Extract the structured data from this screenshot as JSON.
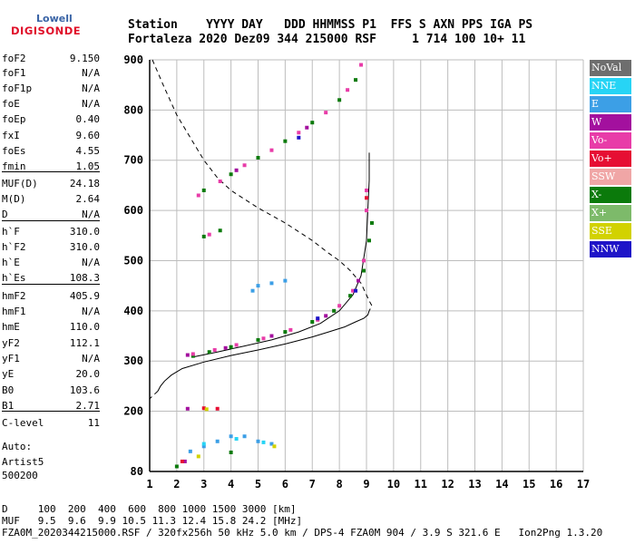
{
  "logo": {
    "top": "Lowell",
    "bottom": "DIGISONDE"
  },
  "header": {
    "line1": "Station    YYYY DAY   DDD HHMMSS P1  FFS S AXN PPS IGA PS",
    "line2": "Fortaleza 2020 Dez09 344 215000 RSF     1 714 100 10+ 11"
  },
  "params": [
    {
      "k": "foF2",
      "v": "9.150"
    },
    {
      "k": "foF1",
      "v": "N/A"
    },
    {
      "k": "foF1p",
      "v": "N/A"
    },
    {
      "k": "foE",
      "v": "N/A"
    },
    {
      "k": "foEp",
      "v": "0.40"
    },
    {
      "k": "fxI",
      "v": "9.60"
    },
    {
      "k": "foEs",
      "v": "4.55"
    },
    {
      "k": "fmin",
      "v": "1.05"
    },
    {
      "k": "MUF(D)",
      "v": "24.18"
    },
    {
      "k": "M(D)",
      "v": "2.64"
    },
    {
      "k": "D",
      "v": "N/A"
    },
    {
      "k": "h`F",
      "v": "310.0"
    },
    {
      "k": "h`F2",
      "v": "310.0"
    },
    {
      "k": "h`E",
      "v": "N/A"
    },
    {
      "k": "h`Es",
      "v": "108.3"
    },
    {
      "k": "hmF2",
      "v": "405.9"
    },
    {
      "k": "hmF1",
      "v": "N/A"
    },
    {
      "k": "hmE",
      "v": "110.0"
    },
    {
      "k": "yF2",
      "v": "112.1"
    },
    {
      "k": "yF1",
      "v": "N/A"
    },
    {
      "k": "yE",
      "v": "20.0"
    },
    {
      "k": "B0",
      "v": "103.6"
    },
    {
      "k": "B1",
      "v": "2.71"
    },
    {
      "k": "C-level",
      "v": "11"
    }
  ],
  "auto": {
    "line1": "Auto:",
    "line2": "Artist5",
    "line3": "500200"
  },
  "legend": [
    {
      "label": "NoVal",
      "color": "#6e6e6e"
    },
    {
      "label": "NNE",
      "color": "#27d4f5"
    },
    {
      "label": "E",
      "color": "#3c9fe6"
    },
    {
      "label": "W",
      "color": "#a3109e"
    },
    {
      "label": "Vo-",
      "color": "#e83ca8"
    },
    {
      "label": "Vo+",
      "color": "#e60e33"
    },
    {
      "label": "SSW",
      "color": "#f0a6a6"
    },
    {
      "label": "X-",
      "color": "#0b7a0b"
    },
    {
      "label": "X+",
      "color": "#7dba6a"
    },
    {
      "label": "SSE",
      "color": "#d2d200"
    },
    {
      "label": "NNW",
      "color": "#1e14c8"
    }
  ],
  "footer": {
    "line1": "D     100  200  400  600  800 1000 1500 3000 [km]",
    "line2": "MUF   9.5  9.6  9.9 10.5 11.3 12.4 15.8 24.2 [MHz]",
    "line3": "FZA0M_2020344215000.RSF / 320fx256h 50 kHz 5.0 km / DPS-4 FZA0M 904 / 3.9 S 321.6 E   Ion2Png 1.3.20"
  },
  "chart_data": {
    "type": "scatter",
    "xlim": [
      1,
      17
    ],
    "ylim": [
      80,
      900
    ],
    "xticks": [
      1,
      2,
      3,
      4,
      5,
      6,
      7,
      8,
      9,
      10,
      11,
      12,
      13,
      14,
      15,
      16,
      17
    ],
    "yticks": [
      80,
      200,
      300,
      400,
      500,
      600,
      700,
      800,
      900
    ],
    "grid": true,
    "legend_position": "right",
    "series": [
      {
        "name": "X-",
        "color": "#0b7a0b",
        "points": [
          [
            2.6,
            310
          ],
          [
            3.2,
            318
          ],
          [
            4.0,
            328
          ],
          [
            5.0,
            342
          ],
          [
            6.0,
            358
          ],
          [
            7.0,
            378
          ],
          [
            7.8,
            400
          ],
          [
            8.4,
            430
          ],
          [
            8.9,
            480
          ],
          [
            9.1,
            540
          ],
          [
            9.2,
            575
          ],
          [
            3.0,
            640
          ],
          [
            4.0,
            672
          ],
          [
            5.0,
            705
          ],
          [
            6.0,
            738
          ],
          [
            7.0,
            775
          ],
          [
            8.0,
            820
          ],
          [
            8.6,
            860
          ],
          [
            3.0,
            548
          ],
          [
            3.6,
            560
          ],
          [
            2.0,
            90
          ],
          [
            4.0,
            118
          ]
        ]
      },
      {
        "name": "Vo-",
        "color": "#e83ca8",
        "points": [
          [
            2.6,
            314
          ],
          [
            3.4,
            322
          ],
          [
            4.2,
            332
          ],
          [
            5.2,
            345
          ],
          [
            6.2,
            362
          ],
          [
            7.2,
            382
          ],
          [
            8.0,
            410
          ],
          [
            8.5,
            440
          ],
          [
            8.9,
            500
          ],
          [
            9.0,
            600
          ],
          [
            9.0,
            640
          ],
          [
            2.8,
            630
          ],
          [
            3.6,
            658
          ],
          [
            4.5,
            690
          ],
          [
            5.5,
            720
          ],
          [
            6.5,
            755
          ],
          [
            7.5,
            795
          ],
          [
            8.3,
            840
          ],
          [
            8.8,
            890
          ],
          [
            3.2,
            552
          ]
        ]
      },
      {
        "name": "E",
        "color": "#3c9fe6",
        "points": [
          [
            2.5,
            120
          ],
          [
            3.0,
            130
          ],
          [
            3.5,
            140
          ],
          [
            4.0,
            150
          ],
          [
            4.5,
            150
          ],
          [
            5.0,
            140
          ],
          [
            5.5,
            135
          ],
          [
            5.0,
            450
          ],
          [
            5.5,
            455
          ],
          [
            6.0,
            460
          ],
          [
            4.8,
            440
          ]
        ]
      },
      {
        "name": "W",
        "color": "#a3109e",
        "points": [
          [
            2.4,
            312
          ],
          [
            3.8,
            326
          ],
          [
            5.5,
            350
          ],
          [
            7.5,
            390
          ],
          [
            8.7,
            460
          ],
          [
            4.2,
            680
          ],
          [
            6.8,
            765
          ],
          [
            2.4,
            205
          ],
          [
            2.3,
            100
          ]
        ]
      },
      {
        "name": "NNE",
        "color": "#27d4f5",
        "points": [
          [
            3.0,
            135
          ],
          [
            4.2,
            145
          ],
          [
            5.2,
            138
          ]
        ]
      },
      {
        "name": "Vo+",
        "color": "#e60e33",
        "points": [
          [
            3.0,
            206
          ],
          [
            3.5,
            205
          ],
          [
            9.0,
            625
          ],
          [
            2.2,
            100
          ]
        ]
      },
      {
        "name": "SSE",
        "color": "#d2d200",
        "points": [
          [
            3.1,
            204
          ],
          [
            5.6,
            130
          ],
          [
            2.8,
            110
          ]
        ]
      },
      {
        "name": "NNW",
        "color": "#1e14c8",
        "points": [
          [
            8.6,
            440
          ],
          [
            7.2,
            385
          ],
          [
            6.5,
            745
          ]
        ]
      }
    ],
    "profile_solid": [
      [
        9.1,
        400
      ],
      [
        9.05,
        392
      ],
      [
        8.9,
        385
      ],
      [
        8.6,
        378
      ],
      [
        8.2,
        368
      ],
      [
        7.6,
        358
      ],
      [
        7.0,
        348
      ],
      [
        6.0,
        334
      ],
      [
        5.0,
        322
      ],
      [
        4.0,
        311
      ],
      [
        3.0,
        298
      ],
      [
        2.2,
        285
      ],
      [
        1.8,
        272
      ],
      [
        1.55,
        260
      ],
      [
        1.4,
        250
      ],
      [
        1.3,
        240
      ]
    ],
    "trace_solid": [
      [
        2.6,
        308
      ],
      [
        3.5,
        318
      ],
      [
        4.5,
        330
      ],
      [
        5.5,
        342
      ],
      [
        6.5,
        358
      ],
      [
        7.3,
        375
      ],
      [
        8.0,
        400
      ],
      [
        8.5,
        432
      ],
      [
        8.8,
        470
      ],
      [
        9.0,
        540
      ],
      [
        9.05,
        600
      ],
      [
        9.1,
        660
      ],
      [
        9.1,
        715
      ]
    ],
    "muf_dashed": [
      [
        1.1,
        900
      ],
      [
        1.5,
        850
      ],
      [
        2.0,
        790
      ],
      [
        2.5,
        745
      ],
      [
        3.0,
        700
      ],
      [
        3.5,
        665
      ],
      [
        4.0,
        640
      ],
      [
        5.0,
        605
      ],
      [
        6.0,
        575
      ],
      [
        7.0,
        540
      ],
      [
        7.6,
        515
      ],
      [
        8.0,
        500
      ],
      [
        8.4,
        480
      ],
      [
        8.8,
        455
      ],
      [
        9.1,
        420
      ],
      [
        9.2,
        410
      ],
      [
        9.1,
        400
      ]
    ],
    "dashed_lower": [
      [
        1.3,
        240
      ],
      [
        1.1,
        230
      ],
      [
        1.0,
        225
      ]
    ]
  }
}
